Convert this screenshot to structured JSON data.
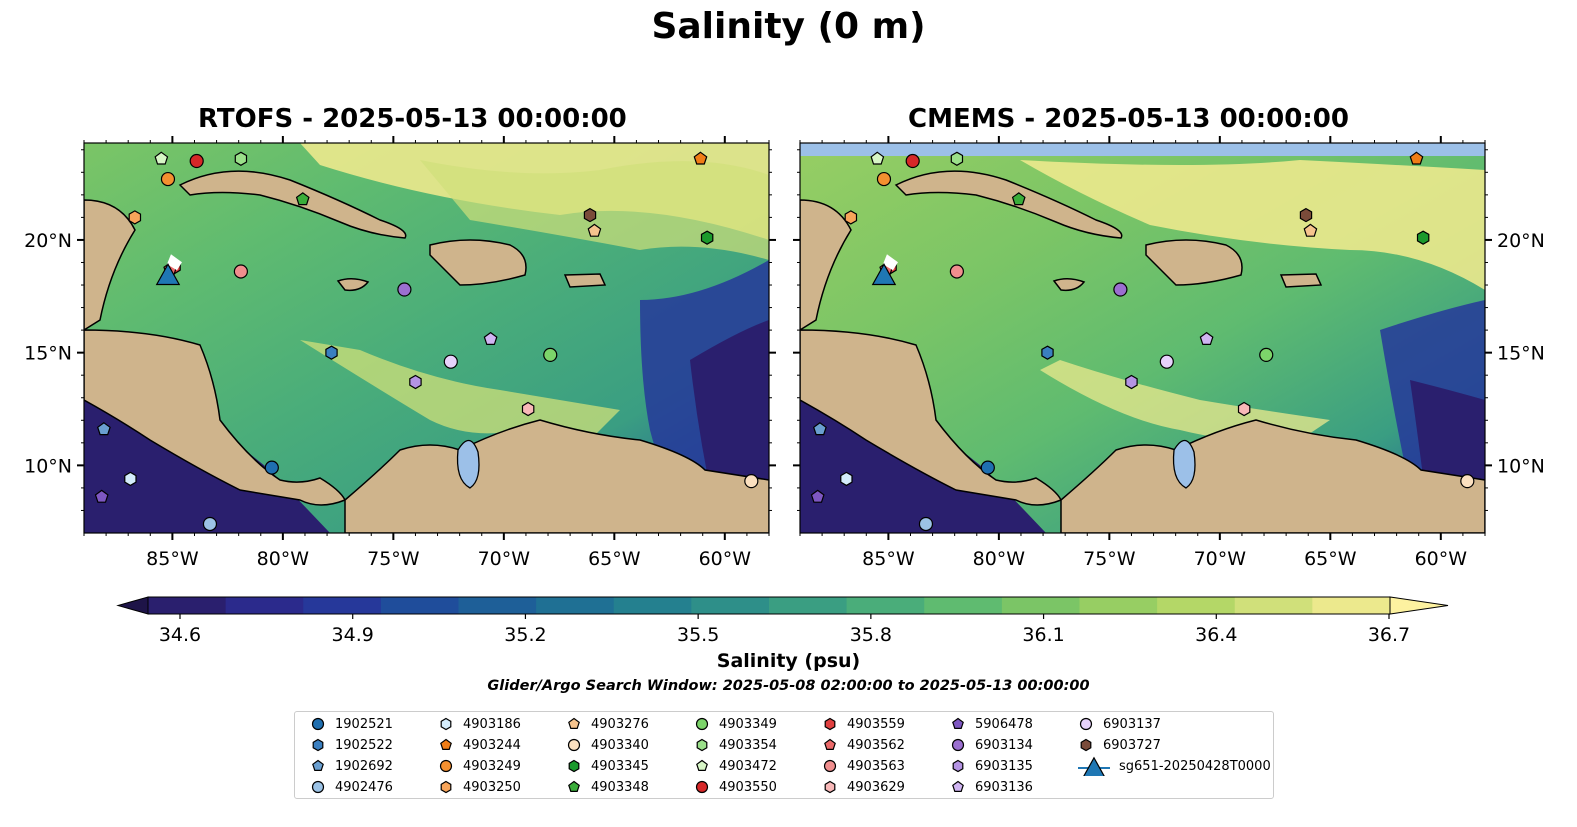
{
  "figure": {
    "suptitle": "Salinity (0 m)",
    "panels": [
      {
        "title": "RTOFS - 2025-05-13 00:00:00"
      },
      {
        "title": "CMEMS - 2025-05-13 00:00:00"
      }
    ],
    "search_window": "Glider/Argo Search Window: 2025-05-08 02:00:00 to 2025-05-13 00:00:00"
  },
  "chart_data": {
    "type": "heatmap",
    "variable": "Salinity",
    "lon_range": [
      -89,
      -58
    ],
    "lat_range": [
      7,
      24.3
    ],
    "x_ticks": [
      "85°W",
      "80°W",
      "75°W",
      "70°W",
      "65°W",
      "60°W"
    ],
    "y_ticks": [
      "20°N",
      "15°N",
      "10°N"
    ],
    "colorbar": {
      "label": "Salinity (psu)",
      "min": 34.6,
      "max": 36.7,
      "ticks": [
        "34.6",
        "34.9",
        "35.2",
        "35.5",
        "35.8",
        "36.1",
        "36.4",
        "36.7"
      ],
      "extend": "both",
      "colors": [
        "#2a1f6e",
        "#2b2a8c",
        "#26389a",
        "#1f4d9b",
        "#1e5f98",
        "#1f7094",
        "#24808f",
        "#2e8f89",
        "#3a9e82",
        "#4aad7a",
        "#5fbb70",
        "#7bc566",
        "#97ce63",
        "#b4d767",
        "#d0e07a",
        "#ece98d"
      ]
    },
    "series": [
      {
        "name": "1902521",
        "marker": "circle",
        "color": "#1f6fb0",
        "lon": -80.5,
        "lat": 9.9
      },
      {
        "name": "1902522",
        "marker": "hexagon",
        "color": "#3a7fc0",
        "lon": -77.8,
        "lat": 15.0
      },
      {
        "name": "1902692",
        "marker": "pentagon",
        "color": "#6a9fd0",
        "lon": -88.1,
        "lat": 11.6
      },
      {
        "name": "4902476",
        "marker": "circle",
        "color": "#9cc3e6",
        "lon": -83.3,
        "lat": 7.4
      },
      {
        "name": "4903186",
        "marker": "hexagon",
        "color": "#d4ecfb",
        "lon": -86.9,
        "lat": 9.4
      },
      {
        "name": "4903244",
        "marker": "pentagon",
        "color": "#f07d16",
        "lon": -61.1,
        "lat": 23.6
      },
      {
        "name": "4903249",
        "marker": "circle",
        "color": "#f49030",
        "lon": -85.2,
        "lat": 22.7
      },
      {
        "name": "4903250",
        "marker": "hexagon",
        "color": "#f8a55a",
        "lon": -86.7,
        "lat": 21.0
      },
      {
        "name": "4903276",
        "marker": "pentagon",
        "color": "#f6c48e",
        "lon": -65.9,
        "lat": 20.4
      },
      {
        "name": "4903340",
        "marker": "circle",
        "color": "#fbe0c0",
        "lon": -58.8,
        "lat": 9.3
      },
      {
        "name": "4903345",
        "marker": "hexagon",
        "color": "#1b9a2c",
        "lon": -60.8,
        "lat": 20.1
      },
      {
        "name": "4903348",
        "marker": "pentagon",
        "color": "#3aad3a",
        "lon": -79.1,
        "lat": 21.8
      },
      {
        "name": "4903349",
        "marker": "circle",
        "color": "#7cd46a",
        "lon": -67.9,
        "lat": 14.9
      },
      {
        "name": "4903354",
        "marker": "hexagon",
        "color": "#9be08a",
        "lon": -81.9,
        "lat": 23.6
      },
      {
        "name": "4903472",
        "marker": "pentagon",
        "color": "#d7f6c6",
        "lon": -85.5,
        "lat": 23.6
      },
      {
        "name": "4903550",
        "marker": "circle",
        "color": "#d62728",
        "lon": -83.9,
        "lat": 23.5
      },
      {
        "name": "4903559",
        "marker": "hexagon",
        "color": "#e04040",
        "lon": -84.9,
        "lat": 18.8
      },
      {
        "name": "4903562",
        "marker": "pentagon",
        "color": "#ec6a6a",
        "lon": -85.1,
        "lat": 18.7
      },
      {
        "name": "4903563",
        "marker": "circle",
        "color": "#f08e8e",
        "lon": -81.9,
        "lat": 18.6
      },
      {
        "name": "4903629",
        "marker": "hexagon",
        "color": "#f8b8b8",
        "lon": -68.9,
        "lat": 12.5
      },
      {
        "name": "5906478",
        "marker": "pentagon",
        "color": "#7e57c2",
        "lon": -88.2,
        "lat": 8.6
      },
      {
        "name": "6903134",
        "marker": "circle",
        "color": "#9b6fd0",
        "lon": -74.5,
        "lat": 17.8
      },
      {
        "name": "6903135",
        "marker": "hexagon",
        "color": "#b594e4",
        "lon": -74.0,
        "lat": 13.7
      },
      {
        "name": "6903136",
        "marker": "pentagon",
        "color": "#d0b5f2",
        "lon": -70.6,
        "lat": 15.6
      },
      {
        "name": "6903137",
        "marker": "circle",
        "color": "#e7d2fb",
        "lon": -72.4,
        "lat": 14.6
      },
      {
        "name": "6903727",
        "marker": "hexagon",
        "color": "#7a4b3a",
        "lon": -66.1,
        "lat": 21.1
      },
      {
        "name": "sg651-20250428T0000",
        "marker": "triangle",
        "color": "#1f77b4",
        "lon": -85.2,
        "lat": 18.3
      }
    ]
  }
}
